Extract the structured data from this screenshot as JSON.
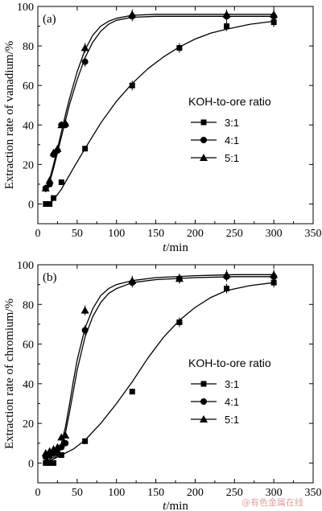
{
  "watermark": "@有色金属在线",
  "chart_data": [
    {
      "type": "line",
      "panel_label": "(a)",
      "xlabel_italic": "t",
      "xlabel_unit": "/min",
      "ylabel": "Extraction rate of vanadium/%",
      "xlim": [
        0,
        350
      ],
      "ylim": [
        -10,
        100
      ],
      "xticks": [
        0,
        50,
        100,
        150,
        200,
        250,
        300,
        350
      ],
      "yticks": [
        0,
        20,
        40,
        60,
        80,
        100
      ],
      "grid": false,
      "legend_title": "KOH-to-ore ratio",
      "legend_position": "right",
      "series": [
        {
          "name": "3:1",
          "marker": "square",
          "x": [
            10,
            15,
            20,
            30,
            60,
            120,
            180,
            240,
            300
          ],
          "y": [
            0,
            0,
            3,
            11,
            28,
            60,
            79,
            90,
            92
          ],
          "curve_x": [
            10,
            15,
            20,
            30,
            45,
            60,
            80,
            100,
            120,
            140,
            160,
            180,
            200,
            220,
            240,
            270,
            300
          ],
          "curve_y": [
            0,
            0.5,
            2,
            7.5,
            18,
            28,
            41,
            52,
            61,
            68.5,
            74.5,
            79.5,
            83.5,
            86.5,
            88.5,
            91,
            92.5
          ]
        },
        {
          "name": "4:1",
          "marker": "circle",
          "x": [
            10,
            15,
            20,
            25,
            30,
            35,
            60,
            120,
            240,
            300
          ],
          "y": [
            8,
            10,
            25,
            27,
            40,
            40,
            72,
            95,
            95,
            95
          ],
          "curve_x": [
            10,
            15,
            20,
            25,
            30,
            35,
            40,
            50,
            60,
            70,
            80,
            90,
            100,
            120,
            150,
            200,
            250,
            300
          ],
          "curve_y": [
            6,
            11,
            18,
            26,
            34,
            42,
            50,
            63,
            74,
            82,
            87.5,
            91,
            93,
            94.5,
            95,
            95,
            95,
            95
          ]
        },
        {
          "name": "5:1",
          "marker": "triangle",
          "x": [
            10,
            15,
            20,
            25,
            30,
            35,
            60,
            120,
            240,
            300
          ],
          "y": [
            8,
            12,
            26,
            28,
            40,
            41,
            79,
            96,
            96,
            96
          ],
          "curve_x": [
            10,
            15,
            20,
            25,
            30,
            35,
            40,
            50,
            60,
            70,
            80,
            90,
            100,
            120,
            150,
            200,
            250,
            300
          ],
          "curve_y": [
            7,
            12.5,
            20,
            28,
            36.5,
            45,
            53,
            67,
            78,
            85.5,
            90,
            92.5,
            94,
            95.5,
            96,
            96,
            96,
            96
          ]
        }
      ]
    },
    {
      "type": "line",
      "panel_label": "(b)",
      "xlabel_italic": "t",
      "xlabel_unit": "/min",
      "ylabel": "Extraction rate of chromium/%",
      "xlim": [
        0,
        350
      ],
      "ylim": [
        -10,
        100
      ],
      "xticks": [
        0,
        50,
        100,
        150,
        200,
        250,
        300,
        350
      ],
      "yticks": [
        0,
        20,
        40,
        60,
        80,
        100
      ],
      "grid": false,
      "legend_title": "KOH-to-ore ratio",
      "legend_position": "right",
      "series": [
        {
          "name": "3:1",
          "marker": "square",
          "x": [
            10,
            15,
            20,
            30,
            60,
            120,
            180,
            240,
            300
          ],
          "y": [
            0,
            0,
            0,
            4,
            11,
            36,
            71,
            88,
            91
          ],
          "curve_x": [
            10,
            20,
            30,
            45,
            60,
            80,
            100,
            120,
            140,
            160,
            180,
            200,
            220,
            240,
            270,
            300
          ],
          "curve_y": [
            0.5,
            2,
            4,
            7,
            11.5,
            20,
            30,
            41,
            53,
            63.5,
            72,
            78.5,
            83.5,
            87,
            89.5,
            91
          ]
        },
        {
          "name": "4:1",
          "marker": "circle",
          "x": [
            10,
            15,
            20,
            25,
            30,
            35,
            60,
            120,
            180,
            240,
            300
          ],
          "y": [
            3,
            4,
            5,
            5,
            8,
            10,
            67,
            91,
            93,
            94,
            94
          ],
          "curve_x": [
            10,
            20,
            25,
            30,
            35,
            40,
            45,
            50,
            60,
            70,
            80,
            90,
            100,
            120,
            150,
            200,
            250,
            300
          ],
          "curve_y": [
            0.5,
            2,
            4,
            8,
            15,
            25,
            36,
            47,
            63.5,
            74,
            81,
            85.5,
            88,
            91,
            92.5,
            93.5,
            94,
            94
          ]
        },
        {
          "name": "5:1",
          "marker": "triangle",
          "x": [
            10,
            15,
            20,
            25,
            30,
            35,
            60,
            120,
            180,
            240,
            300
          ],
          "y": [
            5,
            6,
            7,
            8,
            13,
            14,
            77,
            92,
            93,
            95,
            95
          ],
          "curve_x": [
            10,
            20,
            25,
            30,
            35,
            40,
            45,
            50,
            60,
            70,
            80,
            90,
            100,
            120,
            150,
            200,
            250,
            300
          ],
          "curve_y": [
            1,
            3,
            5.5,
            10,
            18,
            29,
            41,
            52,
            68,
            78,
            84.5,
            88,
            90,
            92,
            93.5,
            94.5,
            95,
            95
          ]
        }
      ]
    }
  ]
}
